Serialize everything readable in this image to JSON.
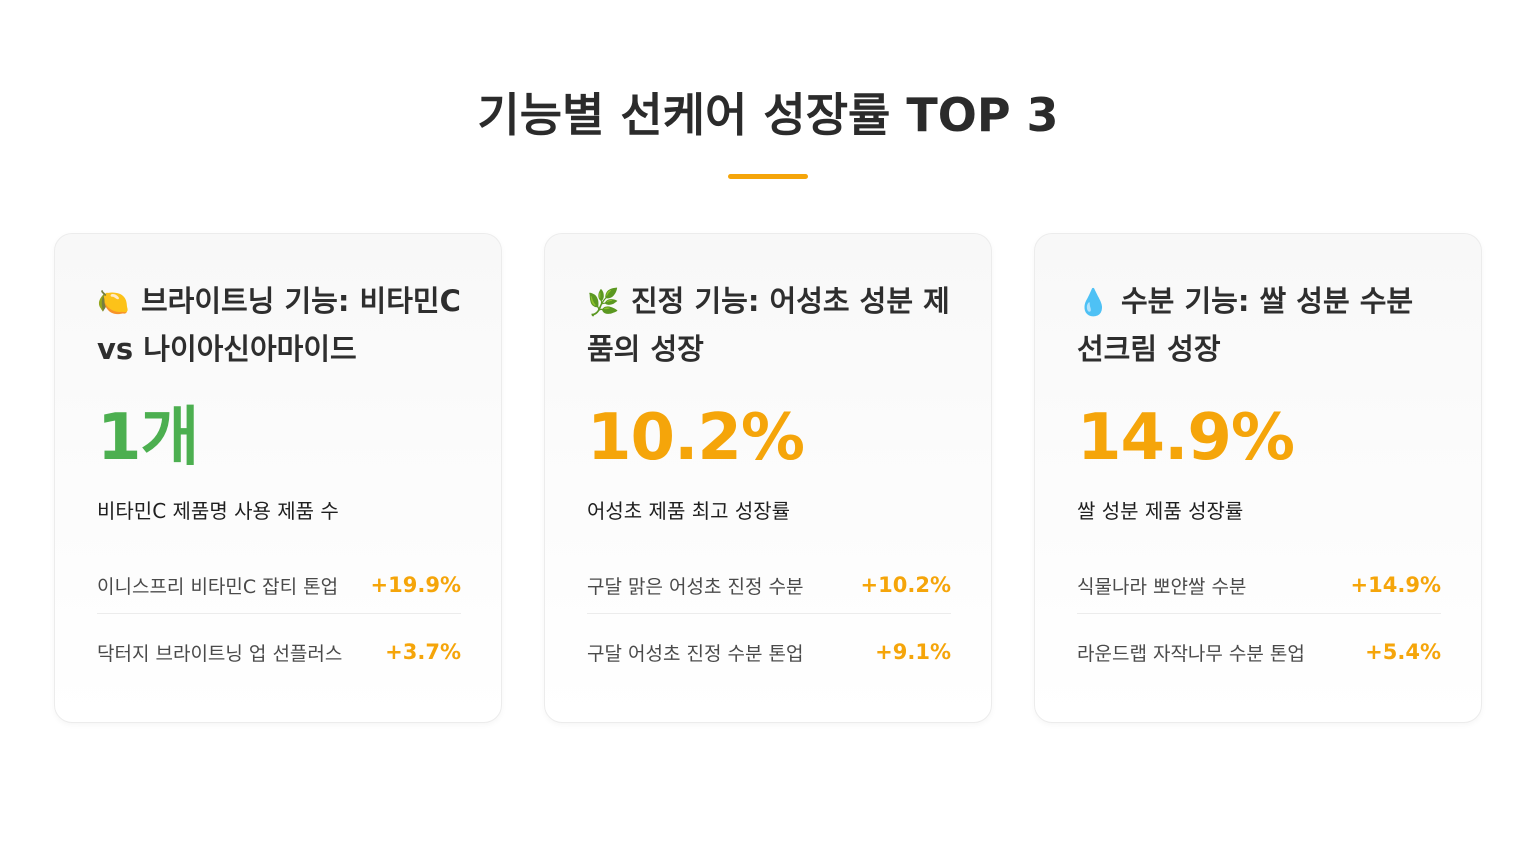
{
  "page": {
    "title": "기능별 선케어 성장률 TOP 3",
    "accent_color": "#F5A50A"
  },
  "cards": [
    {
      "icon": "lemon-icon",
      "emoji": "🍋",
      "heading": "브라이트닝 기능: 비타민C vs 나이아신아마이드",
      "value": "1개",
      "value_color": "#4CAF50",
      "value_desc": "비타민C 제품명 사용 제품 수",
      "items": [
        {
          "name": "이니스프리 비타민C 잡티 톤업",
          "growth": "+19.9%"
        },
        {
          "name": "닥터지 브라이트닝 업 선플러스",
          "growth": "+3.7%"
        }
      ]
    },
    {
      "icon": "herb-icon",
      "emoji": "🌿",
      "heading": "진정 기능: 어성초 성분 제품의 성장",
      "value": "10.2%",
      "value_color": "#F5A50A",
      "value_desc": "어성초 제품 최고 성장률",
      "items": [
        {
          "name": "구달 맑은 어성초 진정 수분",
          "growth": "+10.2%"
        },
        {
          "name": "구달 어성초 진정 수분 톤업",
          "growth": "+9.1%"
        }
      ]
    },
    {
      "icon": "droplet-icon",
      "emoji": "💧",
      "heading": "수분 기능: 쌀 성분 수분 선크림 성장",
      "value": "14.9%",
      "value_color": "#F5A50A",
      "value_desc": "쌀 성분 제품 성장률",
      "items": [
        {
          "name": "식물나라 뽀얀쌀 수분",
          "growth": "+14.9%"
        },
        {
          "name": "라운드랩 자작나무 수분 톤업",
          "growth": "+5.4%"
        }
      ]
    }
  ]
}
